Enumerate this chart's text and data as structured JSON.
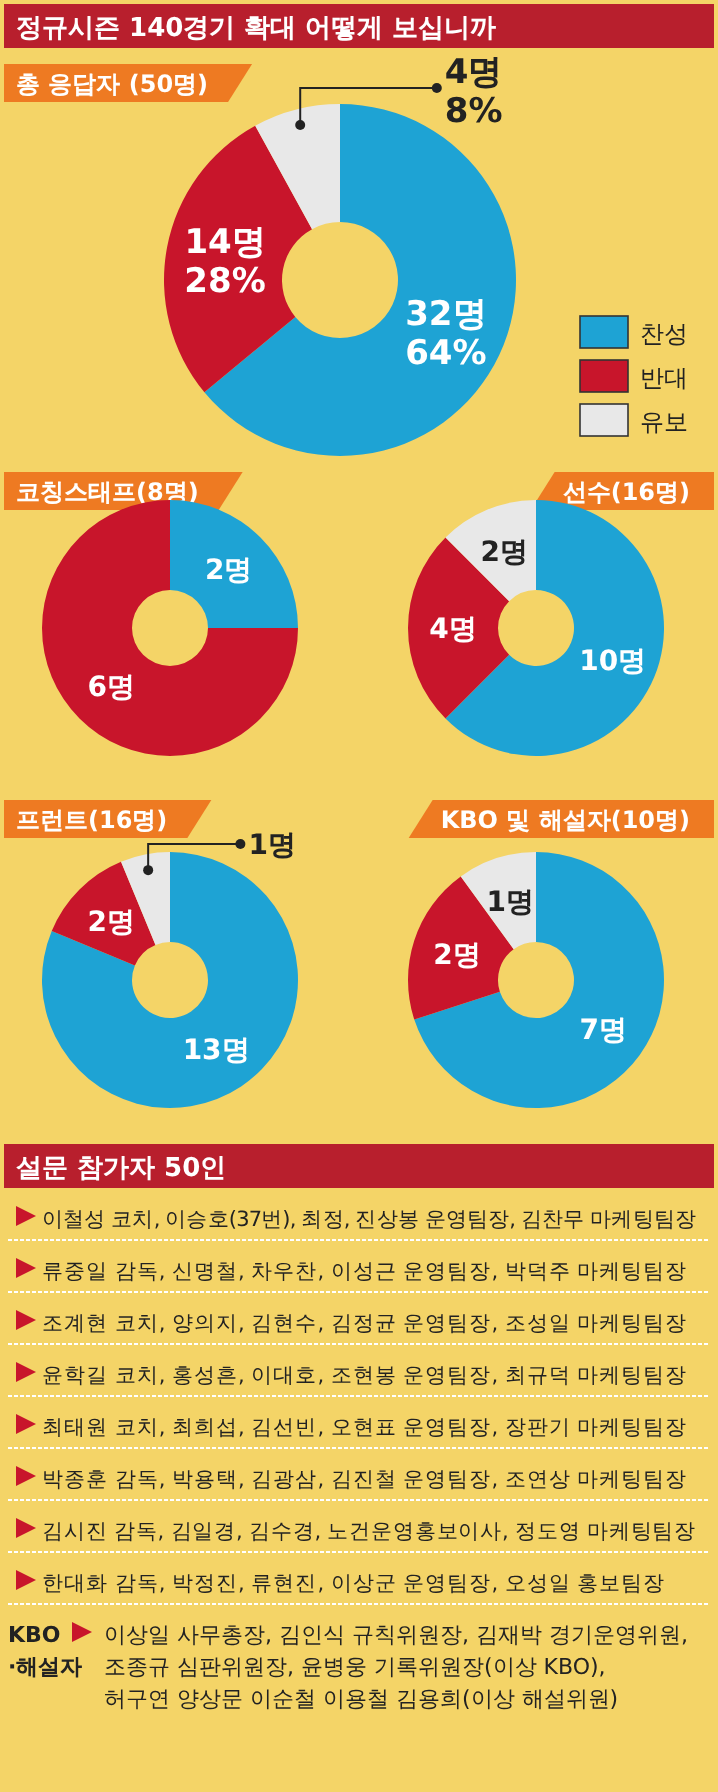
{
  "chart_data": [
    {
      "type": "donut",
      "title": "정규시즌 140경기 확대 어떻게 보십니까",
      "subtitle": "총 응답자 (50명)",
      "categories": [
        "찬성",
        "반대",
        "유보"
      ],
      "values": [
        32,
        14,
        4
      ],
      "colors": [
        "#1ea3d4",
        "#c8152b",
        "#e8e8e8"
      ],
      "value_labels": [
        "32명\n64%",
        "14명\n28%",
        "4명\n8%"
      ],
      "legend": "right"
    },
    {
      "type": "donut",
      "title": "코칭스태프(8명)",
      "values": [
        2,
        6
      ],
      "colors": [
        "#1ea3d4",
        "#c8152b"
      ],
      "value_labels": [
        "2명",
        "6명"
      ]
    },
    {
      "type": "donut",
      "title": "선수(16명)",
      "values": [
        10,
        4,
        2
      ],
      "colors": [
        "#1ea3d4",
        "#c8152b",
        "#e8e8e8"
      ],
      "value_labels": [
        "10명",
        "4명",
        "2명"
      ]
    },
    {
      "type": "donut",
      "title": "프런트(16명)",
      "values": [
        13,
        2,
        1
      ],
      "colors": [
        "#1ea3d4",
        "#c8152b",
        "#e8e8e8"
      ],
      "value_labels": [
        "13명",
        "2명",
        "1명"
      ]
    },
    {
      "type": "donut",
      "title": "KBO 및 해설자(10명)",
      "values": [
        7,
        2,
        1
      ],
      "colors": [
        "#1ea3d4",
        "#c8152b",
        "#e8e8e8"
      ],
      "value_labels": [
        "7명",
        "2명",
        "1명"
      ]
    },
    {
      "type": "other",
      "title": "설문 참가자 50인",
      "annotations": [
        "이철성 코치, 이승호(37번), 최정, 진상봉 운영팀장, 김찬무 마케팅팀장",
        "류중일 감독, 신명철, 차우찬, 이성근 운영팀장, 박덕주 마케팅팀장",
        "조계현 코치, 양의지, 김현수, 김정균 운영팀장, 조성일 마케팅팀장",
        "윤학길 코치, 홍성흔, 이대호, 조현봉 운영팀장, 최규덕 마케팅팀장",
        "최태원 코치, 최희섭, 김선빈, 오현표 운영팀장, 장판기 마케팅팀장",
        "박종훈 감독, 박용택, 김광삼, 김진철 운영팀장, 조연상 마케팅팀장",
        "김시진 감독, 김일경, 김수경, 노건운영홍보이사, 정도영 마케팅팀장",
        "한대화 감독, 박정진, 류현진, 이상군 운영팀장, 오성일 홍보팀장",
        "KBO ·해설자",
        "이상일 사무총장, 김인식 규칙위원장, 김재박 경기운영위원,",
        "조종규 심판위원장, 윤병웅 기록위원장(이상 KBO),",
        "허구연 양상문 이순철 이용철 김용희(이상 해설위원)"
      ]
    }
  ]
}
